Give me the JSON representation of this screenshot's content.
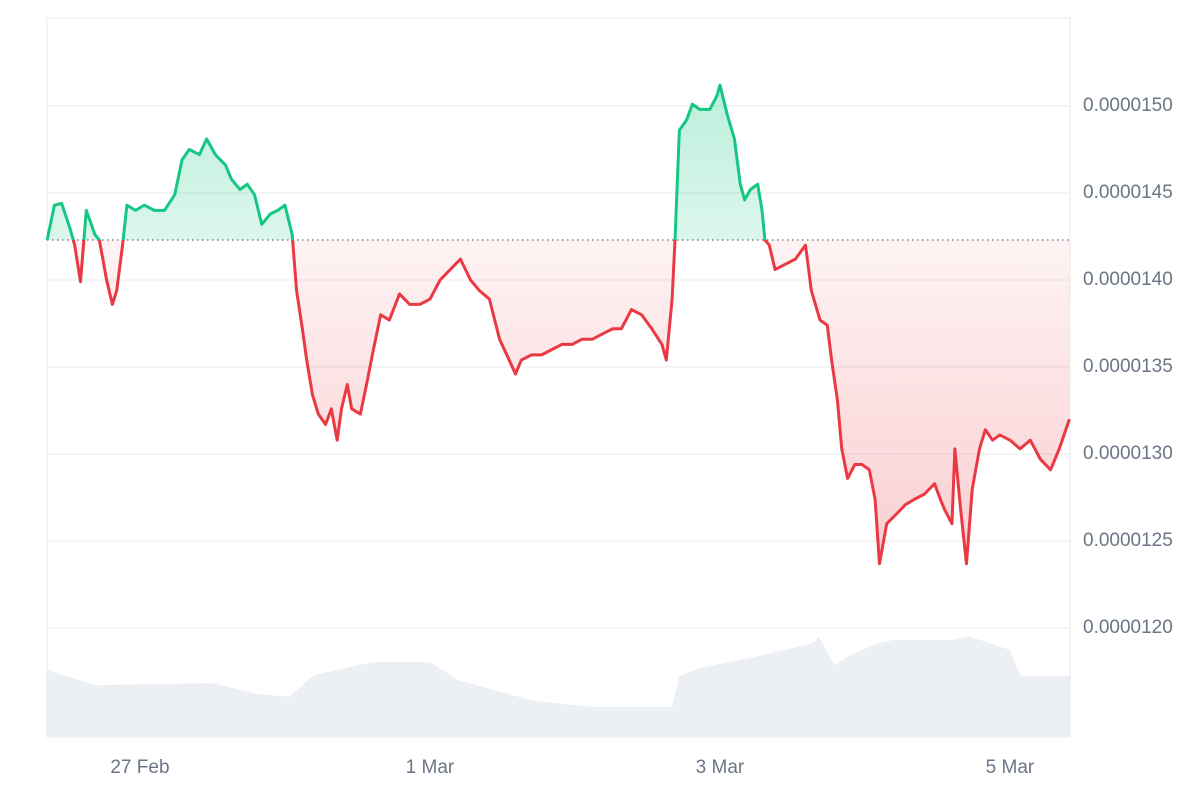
{
  "chart_data": {
    "type": "line",
    "x": [
      -0.64,
      -0.59,
      -0.54,
      -0.48,
      -0.45,
      -0.41,
      -0.37,
      -0.31,
      -0.28,
      -0.23,
      -0.19,
      -0.16,
      -0.12,
      -0.09,
      -0.03,
      0.03,
      0.1,
      0.17,
      0.24,
      0.29,
      0.34,
      0.41,
      0.46,
      0.52,
      0.59,
      0.63,
      0.69,
      0.74,
      0.79,
      0.84,
      0.9,
      0.95,
      1.0,
      1.05,
      1.08,
      1.12,
      1.15,
      1.19,
      1.23,
      1.28,
      1.32,
      1.36,
      1.39,
      1.43,
      1.46,
      1.52,
      1.57,
      1.61,
      1.66,
      1.72,
      1.79,
      1.86,
      1.93,
      2.0,
      2.07,
      2.14,
      2.21,
      2.28,
      2.34,
      2.41,
      2.48,
      2.53,
      2.59,
      2.63,
      2.7,
      2.77,
      2.84,
      2.91,
      2.98,
      3.05,
      3.12,
      3.19,
      3.26,
      3.32,
      3.39,
      3.46,
      3.53,
      3.6,
      3.63,
      3.67,
      3.69,
      3.72,
      3.77,
      3.81,
      3.86,
      3.93,
      3.98,
      4.0,
      4.05,
      4.1,
      4.14,
      4.17,
      4.21,
      4.26,
      4.29,
      4.31,
      4.34,
      4.38,
      4.45,
      4.52,
      4.59,
      4.63,
      4.69,
      4.74,
      4.77,
      4.81,
      4.84,
      4.88,
      4.93,
      4.98,
      5.03,
      5.07,
      5.1,
      5.15,
      5.21,
      5.28,
      5.34,
      5.41,
      5.48,
      5.52,
      5.55,
      5.6,
      5.62,
      5.66,
      5.7,
      5.74,
      5.79,
      5.83,
      5.88,
      5.93,
      6.0,
      6.07,
      6.14,
      6.21,
      6.28,
      6.34,
      6.41
    ],
    "values": [
      1.423e-05,
      1.443e-05,
      1.444e-05,
      1.429e-05,
      1.42e-05,
      1.399e-05,
      1.44e-05,
      1.426e-05,
      1.423e-05,
      1.4e-05,
      1.386e-05,
      1.394e-05,
      1.42e-05,
      1.443e-05,
      1.44e-05,
      1.443e-05,
      1.44e-05,
      1.44e-05,
      1.449e-05,
      1.469e-05,
      1.475e-05,
      1.472e-05,
      1.481e-05,
      1.472e-05,
      1.466e-05,
      1.458e-05,
      1.452e-05,
      1.455e-05,
      1.449e-05,
      1.432e-05,
      1.438e-05,
      1.44e-05,
      1.443e-05,
      1.426e-05,
      1.394e-05,
      1.372e-05,
      1.354e-05,
      1.334e-05,
      1.323e-05,
      1.317e-05,
      1.326e-05,
      1.308e-05,
      1.326e-05,
      1.34e-05,
      1.326e-05,
      1.323e-05,
      1.343e-05,
      1.36e-05,
      1.38e-05,
      1.377e-05,
      1.392e-05,
      1.386e-05,
      1.386e-05,
      1.389e-05,
      1.4e-05,
      1.406e-05,
      1.412e-05,
      1.4e-05,
      1.394e-05,
      1.389e-05,
      1.366e-05,
      1.357e-05,
      1.346e-05,
      1.354e-05,
      1.357e-05,
      1.357e-05,
      1.36e-05,
      1.363e-05,
      1.363e-05,
      1.366e-05,
      1.366e-05,
      1.369e-05,
      1.372e-05,
      1.372e-05,
      1.383e-05,
      1.38e-05,
      1.372e-05,
      1.363e-05,
      1.354e-05,
      1.389e-05,
      1.423e-05,
      1.486e-05,
      1.492e-05,
      1.501e-05,
      1.498e-05,
      1.498e-05,
      1.506e-05,
      1.512e-05,
      1.495e-05,
      1.481e-05,
      1.455e-05,
      1.446e-05,
      1.452e-05,
      1.455e-05,
      1.44e-05,
      1.423e-05,
      1.42e-05,
      1.406e-05,
      1.409e-05,
      1.412e-05,
      1.42e-05,
      1.394e-05,
      1.377e-05,
      1.374e-05,
      1.354e-05,
      1.331e-05,
      1.303e-05,
      1.286e-05,
      1.294e-05,
      1.294e-05,
      1.291e-05,
      1.274e-05,
      1.237e-05,
      1.26e-05,
      1.265e-05,
      1.271e-05,
      1.274e-05,
      1.277e-05,
      1.283e-05,
      1.274e-05,
      1.268e-05,
      1.26e-05,
      1.303e-05,
      1.268e-05,
      1.237e-05,
      1.28e-05,
      1.303e-05,
      1.314e-05,
      1.308e-05,
      1.311e-05,
      1.308e-05,
      1.303e-05,
      1.308e-05,
      1.297e-05,
      1.291e-05,
      1.303e-05,
      1.32e-05
    ],
    "baseline": 1.423e-05,
    "colors": {
      "up": "#16c784",
      "down": "#ea3943"
    },
    "xlim": [
      -0.641,
      6.414
    ],
    "xticks": [
      {
        "value": 0,
        "label": "27 Feb"
      },
      {
        "value": 2,
        "label": "1 Mar"
      },
      {
        "value": 4,
        "label": "3 Mar"
      },
      {
        "value": 6,
        "label": "5 Mar"
      }
    ],
    "ylim": [
      1.1375e-05,
      1.5505e-05
    ],
    "yticks": [
      {
        "value": 1.2e-05,
        "label": "0.0000120"
      },
      {
        "value": 1.25e-05,
        "label": "0.0000125"
      },
      {
        "value": 1.3e-05,
        "label": "0.0000130"
      },
      {
        "value": 1.35e-05,
        "label": "0.0000135"
      },
      {
        "value": 1.4e-05,
        "label": "0.0000140"
      },
      {
        "value": 1.45e-05,
        "label": "0.0000145"
      },
      {
        "value": 1.5e-05,
        "label": "0.0000150"
      }
    ],
    "grid": true,
    "volume": {
      "axis": "y2",
      "color": "#eceff3",
      "x": [
        -0.64,
        -0.3,
        0.5,
        0.8,
        1.03,
        1.2,
        1.6,
        2.0,
        2.2,
        2.7,
        3.1,
        3.67,
        3.72,
        3.86,
        4.3,
        4.65,
        4.68,
        4.79,
        4.9,
        5.1,
        5.2,
        5.6,
        5.72,
        6.0,
        6.07,
        6.41
      ],
      "values": [
        9.3,
        7.2,
        7.5,
        6.0,
        5.6,
        8.6,
        10.4,
        10.4,
        7.9,
        5.1,
        4.2,
        4.2,
        8.5,
        9.6,
        11.4,
        13.1,
        14.0,
        10.0,
        11.4,
        13.1,
        13.5,
        13.5,
        14.0,
        12.1,
        8.5,
        8.5
      ]
    },
    "y2lim": [
      0,
      100
    ]
  }
}
